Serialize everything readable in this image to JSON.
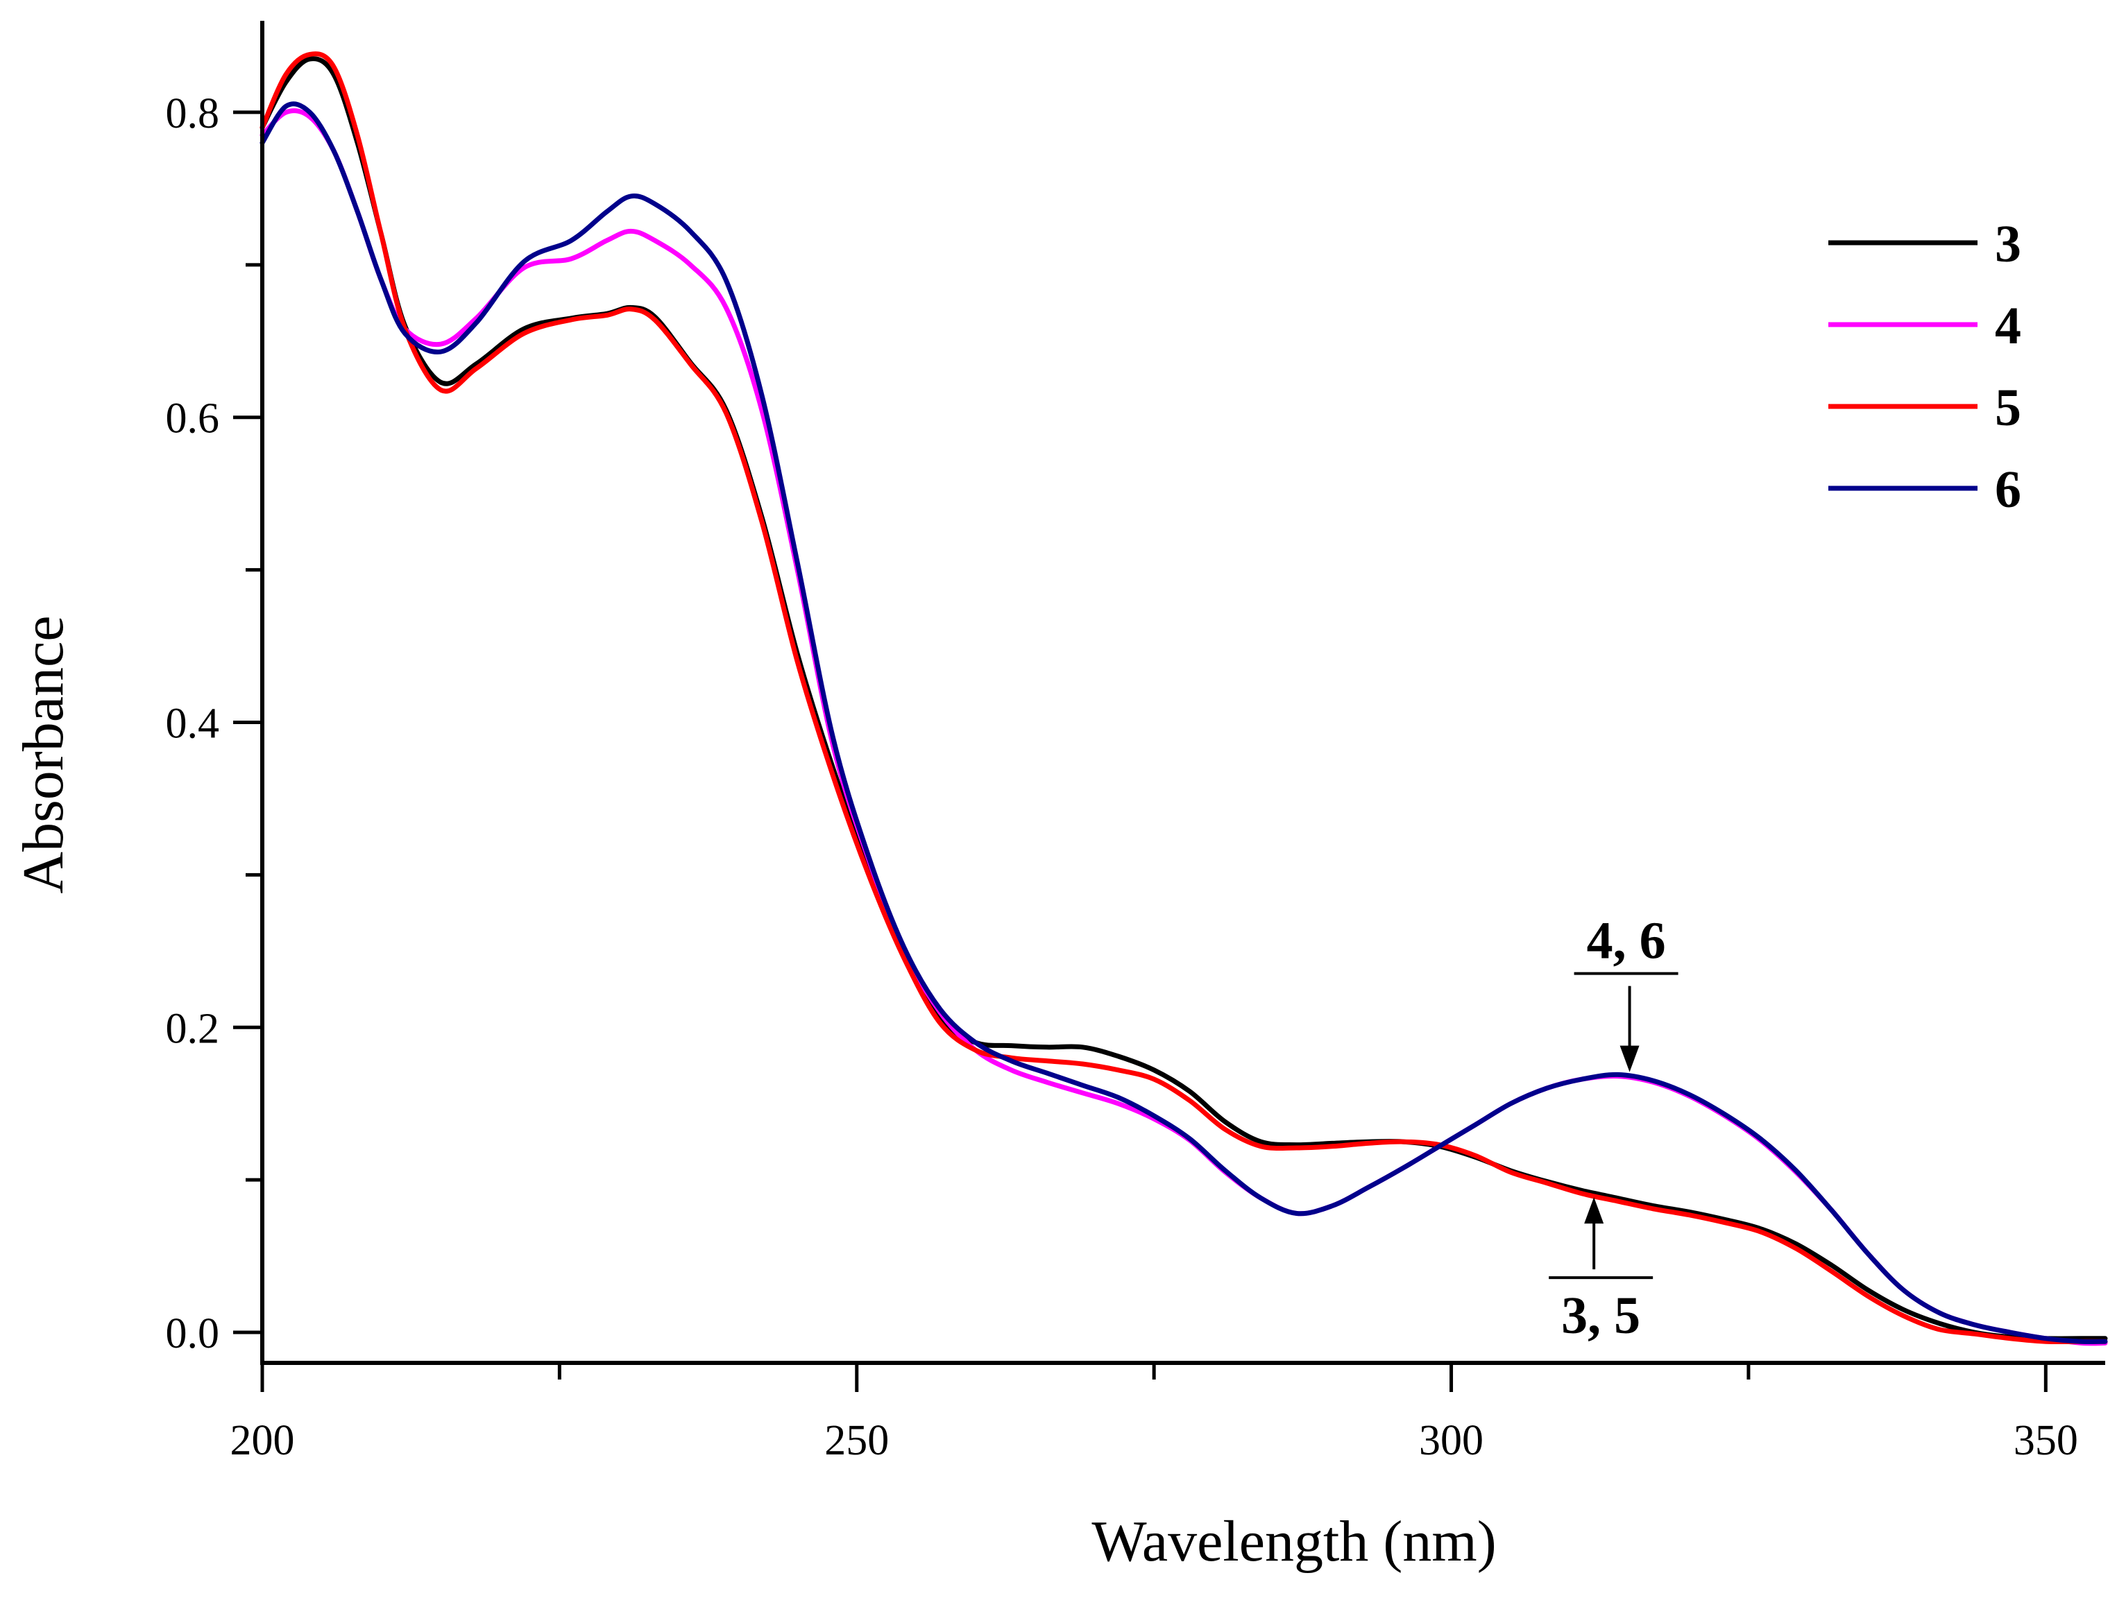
{
  "chart_data": {
    "type": "line",
    "xlabel": "Wavelength (nm)",
    "ylabel": "Absorbance",
    "xlim": [
      200,
      355
    ],
    "ylim": [
      -0.02,
      0.86
    ],
    "xticks": [
      200,
      250,
      300,
      350
    ],
    "xtick_labels": [
      "200",
      "250",
      "300",
      "350"
    ],
    "xminor_ticks": [
      225,
      275,
      325
    ],
    "yticks": [
      0.0,
      0.2,
      0.4,
      0.6,
      0.8
    ],
    "ytick_labels": [
      "0.0",
      "0.2",
      "0.4",
      "0.6",
      "0.8"
    ],
    "grid": false,
    "legend_position": "top-right",
    "series": [
      {
        "name": "3",
        "color": "#000000",
        "x": [
          200,
          202,
          204,
          206,
          208,
          210,
          212,
          215,
          218,
          222,
          226,
          229,
          231,
          233,
          236,
          239,
          242,
          245,
          248,
          251,
          254,
          257,
          260,
          263,
          266,
          269,
          272,
          275,
          278,
          281,
          284,
          287,
          290,
          293,
          296,
          299,
          302,
          305,
          308,
          311,
          314,
          317,
          320,
          323,
          326,
          329,
          332,
          335,
          338,
          341,
          344,
          347,
          350,
          353,
          355
        ],
        "y": [
          0.79,
          0.82,
          0.835,
          0.825,
          0.78,
          0.72,
          0.66,
          0.623,
          0.635,
          0.658,
          0.665,
          0.668,
          0.672,
          0.666,
          0.636,
          0.605,
          0.535,
          0.445,
          0.37,
          0.305,
          0.248,
          0.205,
          0.19,
          0.188,
          0.187,
          0.187,
          0.181,
          0.172,
          0.158,
          0.138,
          0.125,
          0.123,
          0.124,
          0.125,
          0.125,
          0.122,
          0.115,
          0.106,
          0.099,
          0.093,
          0.088,
          0.083,
          0.079,
          0.074,
          0.068,
          0.058,
          0.044,
          0.028,
          0.015,
          0.006,
          0.0,
          -0.003,
          -0.004,
          -0.004,
          -0.004
        ]
      },
      {
        "name": "4",
        "color": "#ff00ff",
        "x": [
          200,
          202,
          204,
          206,
          208,
          210,
          212,
          215,
          218,
          222,
          226,
          229,
          231,
          233,
          236,
          239,
          242,
          245,
          248,
          251,
          254,
          257,
          260,
          263,
          266,
          269,
          272,
          275,
          278,
          281,
          284,
          287,
          290,
          293,
          296,
          299,
          302,
          305,
          308,
          311,
          314,
          317,
          320,
          323,
          326,
          329,
          332,
          335,
          338,
          341,
          344,
          347,
          350,
          353,
          355
        ],
        "y": [
          0.785,
          0.8,
          0.797,
          0.775,
          0.735,
          0.69,
          0.658,
          0.648,
          0.665,
          0.698,
          0.704,
          0.716,
          0.722,
          0.716,
          0.7,
          0.672,
          0.605,
          0.5,
          0.385,
          0.31,
          0.25,
          0.21,
          0.185,
          0.172,
          0.164,
          0.157,
          0.15,
          0.14,
          0.126,
          0.105,
          0.088,
          0.078,
          0.083,
          0.095,
          0.108,
          0.122,
          0.136,
          0.15,
          0.16,
          0.166,
          0.168,
          0.164,
          0.155,
          0.142,
          0.126,
          0.105,
          0.08,
          0.052,
          0.028,
          0.013,
          0.005,
          0.0,
          -0.004,
          -0.007,
          -0.007
        ]
      },
      {
        "name": "5",
        "color": "#ff0000",
        "x": [
          200,
          202,
          204,
          206,
          208,
          210,
          212,
          215,
          218,
          222,
          226,
          229,
          231,
          233,
          236,
          239,
          242,
          245,
          248,
          251,
          254,
          257,
          260,
          263,
          266,
          269,
          272,
          275,
          278,
          281,
          284,
          287,
          290,
          293,
          296,
          299,
          302,
          305,
          308,
          311,
          314,
          317,
          320,
          323,
          326,
          329,
          332,
          335,
          338,
          341,
          344,
          347,
          350,
          353,
          355
        ],
        "y": [
          0.79,
          0.825,
          0.838,
          0.83,
          0.785,
          0.72,
          0.658,
          0.618,
          0.632,
          0.655,
          0.664,
          0.667,
          0.671,
          0.664,
          0.635,
          0.603,
          0.532,
          0.44,
          0.365,
          0.3,
          0.245,
          0.203,
          0.185,
          0.18,
          0.178,
          0.176,
          0.172,
          0.166,
          0.152,
          0.133,
          0.122,
          0.121,
          0.122,
          0.124,
          0.125,
          0.123,
          0.116,
          0.105,
          0.098,
          0.091,
          0.086,
          0.081,
          0.077,
          0.072,
          0.066,
          0.055,
          0.04,
          0.024,
          0.011,
          0.002,
          -0.001,
          -0.004,
          -0.006,
          -0.006,
          -0.006
        ]
      },
      {
        "name": "6",
        "color": "#00008b",
        "x": [
          200,
          202,
          204,
          206,
          208,
          210,
          212,
          215,
          218,
          222,
          226,
          229,
          231,
          233,
          236,
          239,
          242,
          245,
          248,
          251,
          254,
          257,
          260,
          263,
          266,
          269,
          272,
          275,
          278,
          281,
          284,
          287,
          290,
          293,
          296,
          299,
          302,
          305,
          308,
          311,
          314,
          317,
          320,
          323,
          326,
          329,
          332,
          335,
          338,
          341,
          344,
          347,
          350,
          353,
          355
        ],
        "y": [
          0.78,
          0.804,
          0.8,
          0.775,
          0.735,
          0.69,
          0.655,
          0.643,
          0.662,
          0.702,
          0.716,
          0.735,
          0.745,
          0.74,
          0.722,
          0.69,
          0.615,
          0.505,
          0.39,
          0.312,
          0.252,
          0.212,
          0.19,
          0.178,
          0.17,
          0.162,
          0.154,
          0.142,
          0.127,
          0.106,
          0.088,
          0.078,
          0.083,
          0.095,
          0.108,
          0.122,
          0.136,
          0.15,
          0.16,
          0.166,
          0.169,
          0.165,
          0.156,
          0.143,
          0.127,
          0.106,
          0.08,
          0.052,
          0.028,
          0.013,
          0.005,
          0.0,
          -0.004,
          -0.006,
          -0.006
        ]
      }
    ],
    "annotations": [
      {
        "text": "4, 6",
        "arrow_x": 315,
        "arrow_tip_y": 0.168,
        "direction": "down"
      },
      {
        "text": "3, 5",
        "arrow_x": 312,
        "arrow_tip_y": 0.095,
        "direction": "up"
      }
    ]
  }
}
